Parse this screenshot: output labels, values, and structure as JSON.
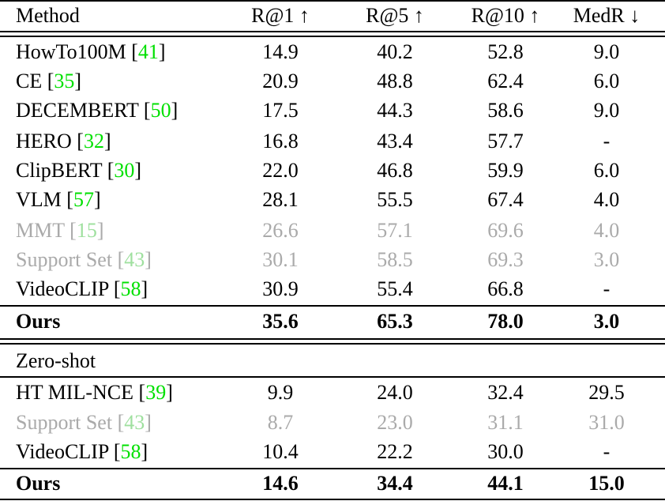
{
  "header": [
    "Method",
    "R@1 ↑",
    "R@5 ↑",
    "R@10 ↑",
    "MedR ↓"
  ],
  "sections": [
    {
      "label": null,
      "rows": [
        {
          "method": "HowTo100M",
          "ref": "41",
          "values": [
            "14.9",
            "40.2",
            "52.8",
            "9.0"
          ],
          "style": "normal"
        },
        {
          "method": "CE",
          "ref": "35",
          "values": [
            "20.9",
            "48.8",
            "62.4",
            "6.0"
          ],
          "style": "normal"
        },
        {
          "method": "DECEMBERT",
          "ref": "50",
          "values": [
            "17.5",
            "44.3",
            "58.6",
            "9.0"
          ],
          "style": "normal"
        },
        {
          "method": "HERO",
          "ref": "32",
          "values": [
            "16.8",
            "43.4",
            "57.7",
            "-"
          ],
          "style": "normal"
        },
        {
          "method": "ClipBERT",
          "ref": "30",
          "values": [
            "22.0",
            "46.8",
            "59.9",
            "6.0"
          ],
          "style": "normal"
        },
        {
          "method": "VLM",
          "ref": "57",
          "values": [
            "28.1",
            "55.5",
            "67.4",
            "4.0"
          ],
          "style": "normal"
        },
        {
          "method": "MMT",
          "ref": "15",
          "values": [
            "26.6",
            "57.1",
            "69.6",
            "4.0"
          ],
          "style": "gray"
        },
        {
          "method": "Support Set",
          "ref": "43",
          "values": [
            "30.1",
            "58.5",
            "69.3",
            "3.0"
          ],
          "style": "gray"
        },
        {
          "method": "VideoCLIP",
          "ref": "58",
          "values": [
            "30.9",
            "55.4",
            "66.8",
            "-"
          ],
          "style": "normal"
        },
        {
          "method": "Ours",
          "ref": null,
          "values": [
            "35.6",
            "65.3",
            "78.0",
            "3.0"
          ],
          "style": "bold"
        }
      ]
    },
    {
      "label": "Zero-shot",
      "rows": [
        {
          "method": "HT MIL-NCE",
          "ref": "39",
          "values": [
            "9.9",
            "24.0",
            "32.4",
            "29.5"
          ],
          "style": "normal"
        },
        {
          "method": "Support Set",
          "ref": "43",
          "values": [
            "8.7",
            "23.0",
            "31.1",
            "31.0"
          ],
          "style": "gray"
        },
        {
          "method": "VideoCLIP",
          "ref": "58",
          "values": [
            "10.4",
            "22.2",
            "30.0",
            "-"
          ],
          "style": "normal"
        },
        {
          "method": "Ours",
          "ref": null,
          "values": [
            "14.6",
            "34.4",
            "44.1",
            "15.0"
          ],
          "style": "bold"
        }
      ]
    }
  ],
  "colors": {
    "citation": "#00e000",
    "gray_row": "#aaaaaa"
  }
}
